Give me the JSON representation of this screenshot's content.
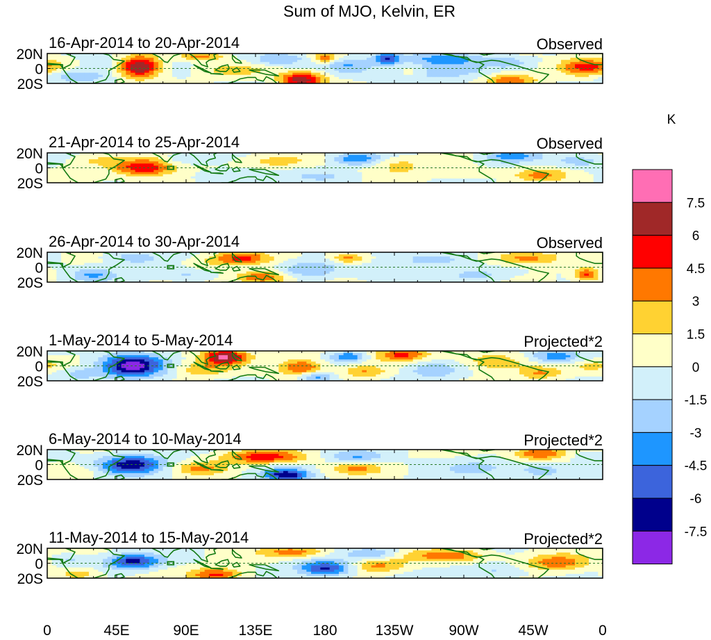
{
  "chart_data": {
    "type": "heatmap",
    "title": "Sum of MJO, Kelvin, ER",
    "units": "K",
    "x_ticks": [
      "0",
      "45E",
      "90E",
      "135E",
      "180",
      "135W",
      "90W",
      "45W",
      "0"
    ],
    "y_ticks": [
      "20N",
      "0",
      "20S"
    ],
    "xlim": [
      0,
      360
    ],
    "ylim": [
      -20,
      20
    ],
    "colorbar": {
      "levels": [
        "7.5",
        "6",
        "4.5",
        "3",
        "1.5",
        "0",
        "-1.5",
        "-3",
        "-4.5",
        "-6",
        "-7.5"
      ],
      "colors": [
        "#ff6eb4",
        "#a02828",
        "#ff0000",
        "#ff7800",
        "#ffd232",
        "#ffffc8",
        "#d2f0fa",
        "#a5d2ff",
        "#1e96ff",
        "#3c64dc",
        "#00008c",
        "#8c28e6"
      ]
    },
    "panels": [
      {
        "period": "16-Apr-2014 to 20-Apr-2014",
        "kind": "Observed",
        "blobs": [
          [
            60,
            2,
            9,
            10,
            7.8
          ],
          [
            165,
            -15,
            10,
            7,
            7
          ],
          [
            20,
            -10,
            14,
            6,
            -3
          ],
          [
            150,
            12,
            12,
            6,
            -3
          ],
          [
            195,
            5,
            10,
            7,
            -2.5
          ],
          [
            250,
            -5,
            25,
            8,
            -2.5
          ],
          [
            220,
            13,
            6,
            5,
            -6
          ],
          [
            258,
            12,
            18,
            6,
            -4
          ],
          [
            300,
            -15,
            12,
            7,
            4
          ],
          [
            350,
            2,
            12,
            8,
            5
          ],
          [
            120,
            -2,
            15,
            6,
            2
          ],
          [
            235,
            -5,
            6,
            6,
            2
          ],
          [
            100,
            16,
            10,
            4,
            3.5
          ],
          [
            35,
            5,
            10,
            6,
            -1.5
          ],
          [
            300,
            8,
            8,
            5,
            -2
          ],
          [
            180,
            14,
            6,
            5,
            4
          ]
        ]
      },
      {
        "period": "21-Apr-2014 to 25-Apr-2014",
        "kind": "Observed",
        "blobs": [
          [
            62,
            0,
            14,
            8,
            6.2
          ],
          [
            120,
            -10,
            15,
            6,
            -2
          ],
          [
            150,
            8,
            15,
            6,
            2
          ],
          [
            200,
            12,
            10,
            6,
            -4
          ],
          [
            230,
            3,
            10,
            8,
            2
          ],
          [
            300,
            15,
            12,
            6,
            -4
          ],
          [
            320,
            -10,
            12,
            6,
            3
          ],
          [
            345,
            8,
            12,
            6,
            -2
          ],
          [
            90,
            12,
            10,
            5,
            -1.5
          ],
          [
            180,
            -12,
            15,
            6,
            -1.5
          ],
          [
            270,
            -6,
            12,
            6,
            1.5
          ],
          [
            30,
            10,
            10,
            6,
            1.5
          ]
        ]
      },
      {
        "period": "26-Apr-2014 to 30-Apr-2014",
        "kind": "Observed",
        "blobs": [
          [
            125,
            12,
            12,
            6,
            5
          ],
          [
            140,
            -14,
            12,
            6,
            5
          ],
          [
            170,
            -3,
            14,
            8,
            -3
          ],
          [
            195,
            12,
            8,
            5,
            4
          ],
          [
            30,
            -10,
            10,
            7,
            -3
          ],
          [
            55,
            12,
            12,
            6,
            -2.5
          ],
          [
            90,
            -10,
            12,
            6,
            -2
          ],
          [
            250,
            10,
            15,
            6,
            -3
          ],
          [
            310,
            12,
            15,
            6,
            4
          ],
          [
            350,
            -10,
            6,
            6,
            5
          ],
          [
            280,
            -10,
            15,
            6,
            -2
          ],
          [
            215,
            -10,
            12,
            6,
            -1.5
          ],
          [
            100,
            5,
            10,
            6,
            1.5
          ]
        ]
      },
      {
        "period": "1-May-2014 to 5-May-2014",
        "kind": "Projected*2",
        "blobs": [
          [
            55,
            0,
            14,
            11,
            -8
          ],
          [
            115,
            12,
            10,
            7,
            7.8
          ],
          [
            165,
            -2,
            10,
            8,
            5
          ],
          [
            195,
            12,
            8,
            5,
            -4.5
          ],
          [
            205,
            -8,
            10,
            6,
            3
          ],
          [
            230,
            15,
            12,
            6,
            5
          ],
          [
            250,
            -5,
            12,
            8,
            -3
          ],
          [
            290,
            5,
            15,
            8,
            3
          ],
          [
            330,
            12,
            12,
            6,
            -4
          ],
          [
            320,
            -10,
            10,
            6,
            3
          ],
          [
            175,
            -15,
            8,
            5,
            -4
          ],
          [
            100,
            -5,
            12,
            7,
            2.5
          ],
          [
            20,
            -10,
            10,
            6,
            -2
          ],
          [
            355,
            0,
            10,
            6,
            2
          ]
        ]
      },
      {
        "period": "6-May-2014 to 10-May-2014",
        "kind": "Projected*2",
        "blobs": [
          [
            55,
            0,
            14,
            9,
            -7
          ],
          [
            140,
            10,
            18,
            6,
            5.5
          ],
          [
            155,
            -14,
            10,
            6,
            -7
          ],
          [
            200,
            10,
            12,
            6,
            -3
          ],
          [
            200,
            -5,
            12,
            6,
            3
          ],
          [
            280,
            -5,
            15,
            8,
            -2
          ],
          [
            320,
            15,
            12,
            6,
            5
          ],
          [
            320,
            -8,
            10,
            6,
            -3
          ],
          [
            350,
            10,
            8,
            6,
            -1.5
          ],
          [
            100,
            -5,
            12,
            6,
            3
          ],
          [
            20,
            -10,
            10,
            6,
            1.5
          ]
        ]
      },
      {
        "period": "11-May-2014 to 15-May-2014",
        "kind": "Projected*2",
        "blobs": [
          [
            55,
            2,
            12,
            7,
            -6.5
          ],
          [
            110,
            -15,
            12,
            6,
            5
          ],
          [
            160,
            15,
            15,
            5,
            4
          ],
          [
            180,
            -7,
            12,
            7,
            -6.5
          ],
          [
            210,
            12,
            12,
            6,
            -3
          ],
          [
            215,
            -3,
            12,
            7,
            3.5
          ],
          [
            260,
            10,
            18,
            6,
            4
          ],
          [
            290,
            -10,
            15,
            6,
            -2
          ],
          [
            330,
            0,
            15,
            8,
            4
          ],
          [
            20,
            -15,
            10,
            5,
            3
          ],
          [
            15,
            5,
            8,
            5,
            -2
          ]
        ]
      }
    ]
  }
}
